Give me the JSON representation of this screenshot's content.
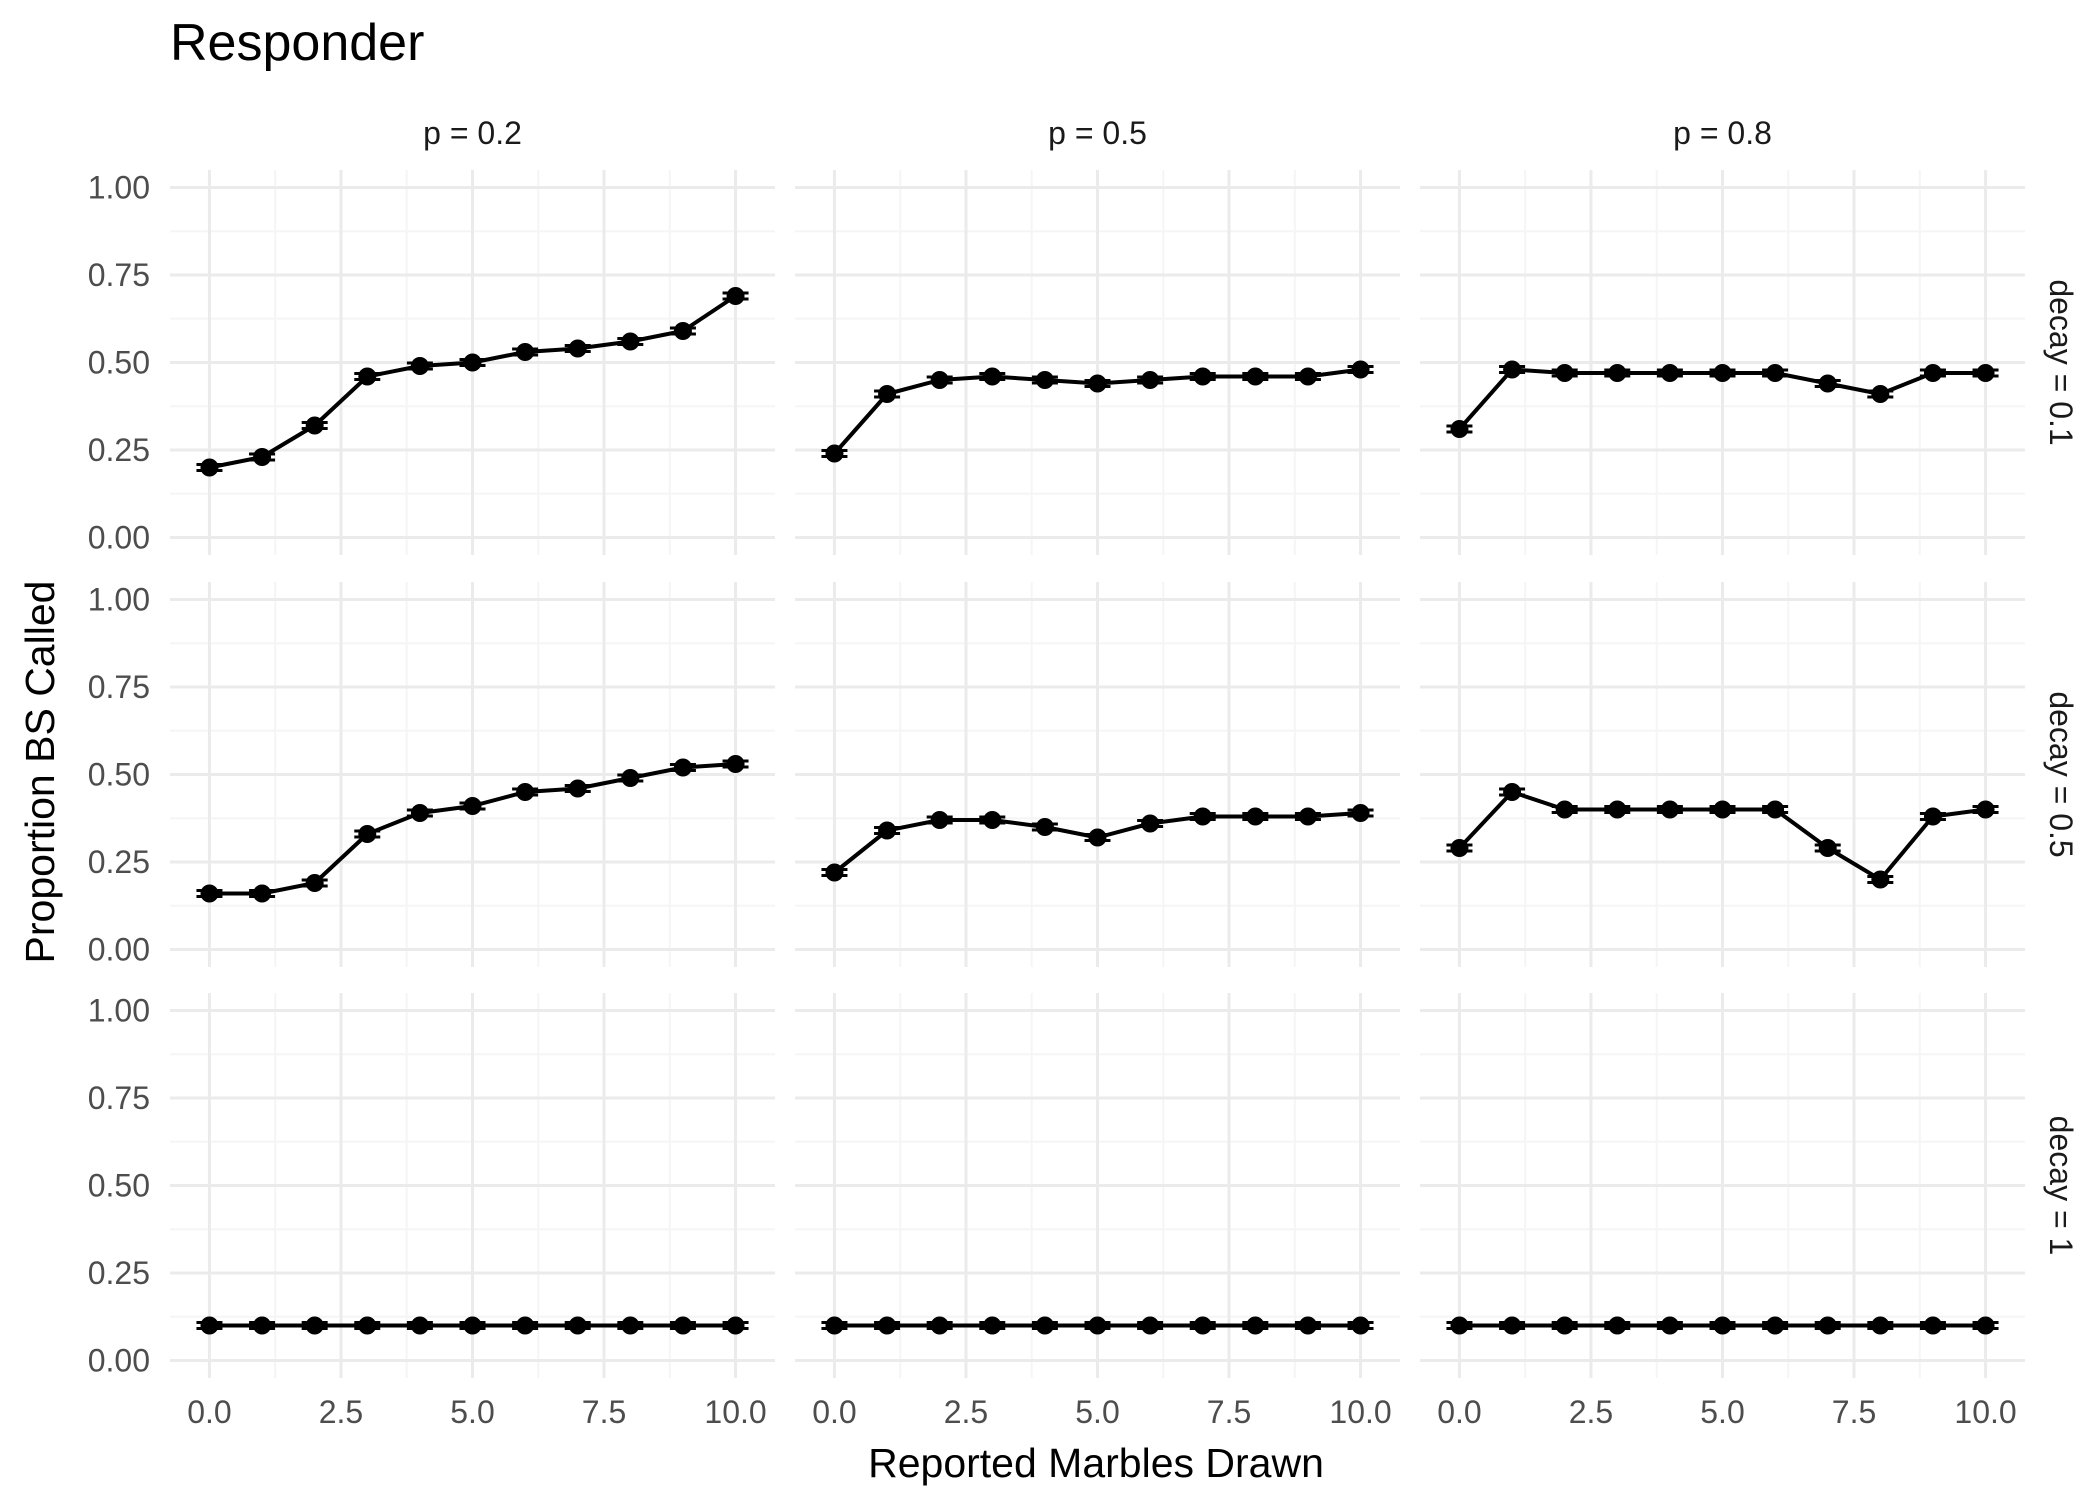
{
  "chart_data": {
    "type": "line",
    "title": "Responder",
    "xlabel": "Reported Marbles Drawn",
    "ylabel": "Proportion BS Called",
    "xlim": [
      -0.75,
      10.75
    ],
    "ylim": [
      -0.05,
      1.05
    ],
    "x_ticks": [
      0,
      2.5,
      5,
      7.5,
      10
    ],
    "x_tick_labels": [
      "0.0",
      "2.5",
      "5.0",
      "7.5",
      "10.0"
    ],
    "y_ticks": [
      0,
      0.25,
      0.5,
      0.75,
      1
    ],
    "y_tick_labels": [
      "0.00",
      "0.25",
      "0.50",
      "0.75",
      "1.00"
    ],
    "grid": true,
    "col_labels": [
      "p = 0.2",
      "p = 0.5",
      "p = 0.8"
    ],
    "row_labels": [
      "decay = 0.1",
      "decay = 0.5",
      "decay = 1"
    ],
    "x": [
      0,
      1,
      2,
      3,
      4,
      5,
      6,
      7,
      8,
      9,
      10
    ],
    "panels": [
      {
        "row": 0,
        "col": 0,
        "values": [
          0.2,
          0.23,
          0.32,
          0.46,
          0.49,
          0.5,
          0.53,
          0.54,
          0.56,
          0.59,
          0.69
        ]
      },
      {
        "row": 0,
        "col": 1,
        "values": [
          0.24,
          0.41,
          0.45,
          0.46,
          0.45,
          0.44,
          0.45,
          0.46,
          0.46,
          0.46,
          0.48
        ]
      },
      {
        "row": 0,
        "col": 2,
        "values": [
          0.31,
          0.48,
          0.47,
          0.47,
          0.47,
          0.47,
          0.47,
          0.44,
          0.41,
          0.47,
          0.47
        ]
      },
      {
        "row": 1,
        "col": 0,
        "values": [
          0.16,
          0.16,
          0.19,
          0.33,
          0.39,
          0.41,
          0.45,
          0.46,
          0.49,
          0.52,
          0.53
        ]
      },
      {
        "row": 1,
        "col": 1,
        "values": [
          0.22,
          0.34,
          0.37,
          0.37,
          0.35,
          0.32,
          0.36,
          0.38,
          0.38,
          0.38,
          0.39
        ]
      },
      {
        "row": 1,
        "col": 2,
        "values": [
          0.29,
          0.45,
          0.4,
          0.4,
          0.4,
          0.4,
          0.4,
          0.29,
          0.2,
          0.38,
          0.4
        ]
      },
      {
        "row": 2,
        "col": 0,
        "values": [
          0.1,
          0.1,
          0.1,
          0.1,
          0.1,
          0.1,
          0.1,
          0.1,
          0.1,
          0.1,
          0.1
        ]
      },
      {
        "row": 2,
        "col": 1,
        "values": [
          0.1,
          0.1,
          0.1,
          0.1,
          0.1,
          0.1,
          0.1,
          0.1,
          0.1,
          0.1,
          0.1
        ]
      },
      {
        "row": 2,
        "col": 2,
        "values": [
          0.1,
          0.1,
          0.1,
          0.1,
          0.1,
          0.1,
          0.1,
          0.1,
          0.1,
          0.1,
          0.1
        ]
      }
    ],
    "colors": {
      "line": "#000000",
      "grid_major": "#ebebeb",
      "grid_minor": "#f5f5f5"
    }
  }
}
